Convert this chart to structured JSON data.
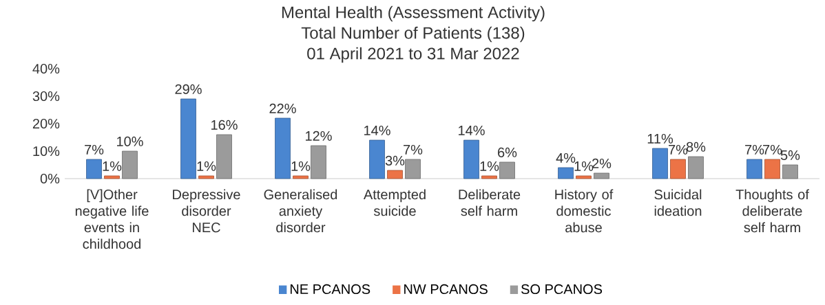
{
  "chart_data": {
    "type": "bar",
    "title": "Mental Health (Assessment Activity)",
    "subtitle": "Total Number of Patients (138)",
    "annotations": [
      "01 April 2021 to 31 Mar 2022"
    ],
    "categories": [
      "[V]Other negative life events in childhood",
      "Depressive disorder NEC",
      "Generalised anxiety disorder",
      "Attempted suicide",
      "Deliberate self harm",
      "History of domestic abuse",
      "Suicidal ideation",
      "Thoughts of deliberate self harm"
    ],
    "series": [
      {
        "name": "NE PCANOS",
        "color": "#4a86d0",
        "values": [
          7,
          29,
          22,
          14,
          14,
          4,
          11,
          7
        ],
        "value_labels": [
          "7%",
          "29%",
          "22%",
          "14%",
          "14%",
          "4%",
          "11%",
          "7%"
        ]
      },
      {
        "name": "NW PCANOS",
        "color": "#ec7346",
        "values": [
          1,
          1,
          1,
          3,
          1,
          1,
          7,
          7
        ],
        "value_labels": [
          "1%",
          "1%",
          "1%",
          "3%",
          "1%",
          "1%",
          "7%",
          "7%"
        ]
      },
      {
        "name": "SO PCANOS",
        "color": "#9b9b9b",
        "values": [
          10,
          16,
          12,
          7,
          6,
          2,
          8,
          5
        ],
        "value_labels": [
          "10%",
          "16%",
          "12%",
          "7%",
          "6%",
          "2%",
          "8%",
          "5%"
        ]
      }
    ],
    "ylim": [
      0,
      40
    ],
    "yticks": [
      {
        "value": 0,
        "label": "0%"
      },
      {
        "value": 10,
        "label": "10%"
      },
      {
        "value": 20,
        "label": "20%"
      },
      {
        "value": 30,
        "label": "30%"
      },
      {
        "value": 40,
        "label": "40%"
      }
    ],
    "legend": "bottom"
  }
}
